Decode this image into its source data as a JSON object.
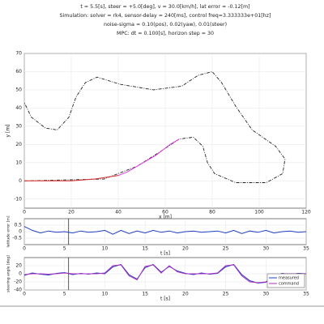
{
  "chart_data": [
    {
      "type": "line",
      "title": [
        "t = 5.5[s], steer = +5.0[deg], v = 30.0[km/h], lat error = -0.12[m]",
        "Simulation: solver = rk4, sensor-delay = 240[ms], control freq=3.333333e+01[hz]",
        "noise-sigma = 0.10(pos), 0.02(yaw), 0.01(steer)",
        "MPC: dt = 0.100[s], horizon step = 30"
      ],
      "xlabel": "x [m]",
      "ylabel": "y [m]",
      "xlim": [
        0,
        120
      ],
      "xticks": [
        0,
        20,
        40,
        60,
        80,
        100,
        120
      ],
      "ylim": [
        -15,
        70
      ],
      "yticks": [
        -10,
        0,
        10,
        20,
        30,
        40,
        50,
        60,
        70
      ],
      "grid": true,
      "series": [
        {
          "color": "#222222",
          "dash": true,
          "x": [
            0,
            34,
            48,
            59,
            66,
            72,
            76,
            78,
            81,
            90,
            103,
            110,
            111,
            107,
            97,
            90,
            84,
            80,
            74,
            67,
            55,
            41,
            31,
            26,
            22,
            19,
            14,
            9,
            3,
            0
          ],
          "values": [
            0,
            1,
            8,
            17,
            23,
            24,
            19,
            10,
            4,
            -1,
            -1,
            4,
            12,
            19,
            28,
            41,
            54,
            60,
            58,
            52,
            50,
            53,
            57,
            54,
            46,
            35,
            28,
            29,
            35,
            43
          ]
        },
        {
          "color": "#d62728",
          "dash": false,
          "x": [
            0,
            10,
            20,
            30,
            40
          ],
          "values": [
            0,
            0,
            0,
            1,
            3
          ]
        },
        {
          "color": "#e040e0",
          "dash": false,
          "x": [
            40,
            44,
            48,
            52,
            56,
            59,
            62,
            66
          ],
          "values": [
            3,
            5,
            8,
            11,
            14,
            17,
            20,
            23
          ]
        }
      ]
    },
    {
      "type": "line",
      "xlabel": "t [s]",
      "ylabel": "latitude error [m]",
      "xlim": [
        0,
        35
      ],
      "xticks": [
        0,
        5,
        10,
        15,
        20,
        25,
        30,
        35
      ],
      "ylim": [
        -1,
        1
      ],
      "yticks": [
        -0.5,
        0,
        0.5
      ],
      "grid": true,
      "marker_x": 5.5,
      "series": [
        {
          "color": "#1f3fbf",
          "dash": false,
          "x": [
            0,
            1,
            2,
            3,
            4,
            5,
            6,
            7,
            8,
            9,
            10,
            11,
            12,
            13,
            14,
            15,
            16,
            17,
            18,
            19,
            20,
            21,
            22,
            23,
            24,
            25,
            26,
            27,
            28,
            29,
            30,
            31,
            32,
            33,
            34,
            35
          ],
          "values": [
            0.4,
            0.1,
            -0.1,
            0.05,
            -0.05,
            0,
            -0.1,
            0.05,
            -0.05,
            0,
            0.1,
            -0.2,
            0.1,
            -0.15,
            0.05,
            -0.1,
            0.1,
            -0.05,
            0.05,
            -0.1,
            0,
            0.05,
            -0.05,
            0,
            0.05,
            -0.1,
            0.1,
            -0.15,
            0.05,
            -0.05,
            0.1,
            -0.1,
            0,
            0.05,
            -0.05,
            0
          ]
        }
      ]
    },
    {
      "type": "line",
      "xlabel": "t [s]",
      "ylabel": "steering angle [deg]",
      "xlim": [
        0,
        35
      ],
      "xticks": [
        0,
        5,
        10,
        15,
        20,
        25,
        30,
        35
      ],
      "ylim": [
        -40,
        40
      ],
      "yticks": [
        -40,
        -20,
        0,
        20
      ],
      "grid": true,
      "marker_x": 5.5,
      "series": [
        {
          "name": "measured",
          "color": "#1f3fbf",
          "dash": false,
          "x": [
            0,
            1,
            2,
            3,
            4,
            5,
            6,
            7,
            8,
            9,
            10,
            11,
            12,
            13,
            14,
            15,
            16,
            17,
            18,
            19,
            20,
            21,
            22,
            23,
            24,
            25,
            26,
            27,
            28,
            29,
            30,
            31,
            32,
            33,
            34,
            35
          ],
          "values": [
            -4,
            2,
            -1,
            -3,
            1,
            3,
            -2,
            1,
            -1,
            2,
            0,
            17,
            23,
            -2,
            -13,
            15,
            23,
            4,
            18,
            7,
            1,
            -2,
            2,
            -1,
            1,
            17,
            23,
            -2,
            -17,
            -23,
            -21,
            -7,
            1,
            -2,
            1,
            0
          ]
        },
        {
          "name": "command",
          "color": "#b030c0",
          "dash": false,
          "x": [
            0,
            1,
            2,
            3,
            4,
            5,
            6,
            7,
            8,
            9,
            10,
            11,
            12,
            13,
            14,
            15,
            16,
            17,
            18,
            19,
            20,
            21,
            22,
            23,
            24,
            25,
            26,
            27,
            28,
            29,
            30,
            31,
            32,
            33,
            34,
            35
          ],
          "values": [
            -2,
            0,
            0,
            -1,
            0,
            2,
            0,
            0,
            0,
            0,
            2,
            20,
            22,
            -5,
            -15,
            18,
            22,
            2,
            20,
            5,
            0,
            0,
            0,
            0,
            2,
            20,
            22,
            -5,
            -20,
            -22,
            -20,
            -5,
            0,
            0,
            0,
            0
          ]
        }
      ]
    }
  ]
}
